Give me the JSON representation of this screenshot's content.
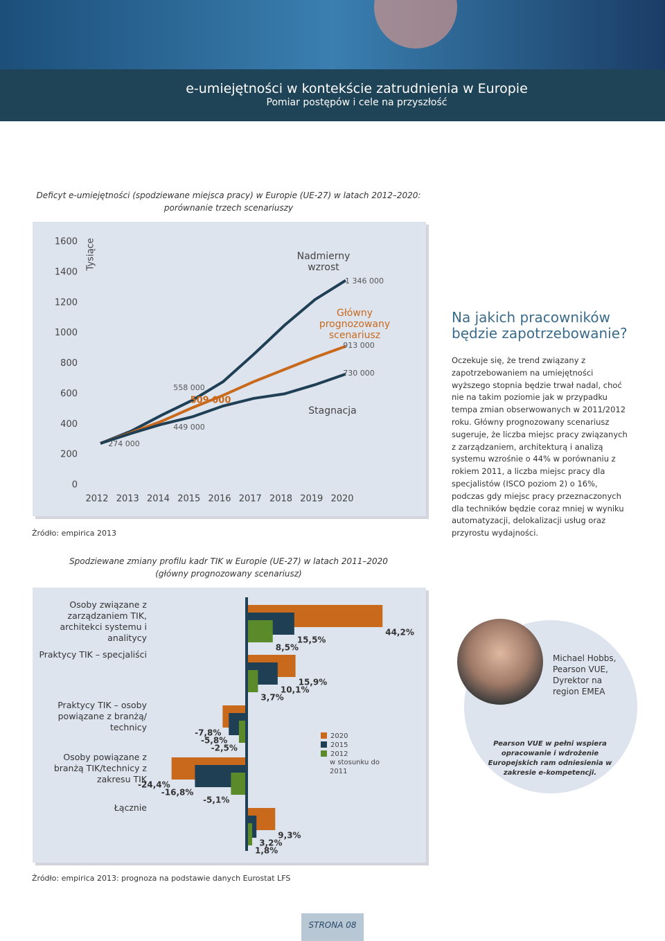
{
  "header": {
    "title": "e-umiejętności w kontekście zatrudnienia w Europie",
    "subtitle": "Pomiar postępów i cele na przyszłość"
  },
  "chart_data": [
    {
      "type": "line",
      "title": [
        "Deficyt e-umiejętności (spodziewane miejsca pracy) w Europie (UE-27) w latach 2012–2020:",
        "porównanie trzech scenariuszy"
      ],
      "ylabel": "Tysiące",
      "categories": [
        "2012",
        "2013",
        "2014",
        "2015",
        "2016",
        "2017",
        "2018",
        "2019",
        "2020"
      ],
      "ylim": [
        0,
        1600
      ],
      "yticks": [
        0,
        200,
        400,
        600,
        800,
        1000,
        1200,
        1400,
        1600
      ],
      "series": [
        {
          "name": "Nadmierny wzrost",
          "color": "#1f3f55",
          "values": [
            274,
            355,
            460,
            558,
            680,
            860,
            1050,
            1220,
            1346
          ]
        },
        {
          "name": "Główny prognozowany scenariusz",
          "color": "#c8691c",
          "values": [
            274,
            345,
            420,
            509,
            590,
            680,
            760,
            840,
            913
          ]
        },
        {
          "name": "Stagnacja",
          "color": "#1f3f55",
          "values": [
            274,
            340,
            400,
            449,
            520,
            570,
            600,
            660,
            730
          ]
        }
      ],
      "annotations": [
        "274 000",
        "558 000",
        "509 000",
        "449 000",
        "1 346 000",
        "913 000",
        "730 000"
      ],
      "source": "Źródło: empirica 2013"
    },
    {
      "type": "hbar",
      "title": [
        "Spodziewane zmiany profilu kadr TIK w Europie (UE-27) w latach 2011–2020",
        "(główny prognozowany scenariusz)"
      ],
      "categories": [
        "Osoby związane z zarządzaniem TIK, architekci systemu i analitycy",
        "Praktycy TIK – specjaliści",
        "Praktycy TIK – osoby powiązane z branżą/ technicy",
        "Osoby powiązane z branżą TIK/technicy z zakresu TIK",
        "Łącznie"
      ],
      "xlim": [
        -25,
        50
      ],
      "series": [
        {
          "name": "2020",
          "color": "#c8691c",
          "values": [
            44.2,
            15.9,
            -7.8,
            -24.4,
            9.3
          ],
          "value_labels": [
            "44,2%",
            "15,9%",
            "-7,8%",
            "-24,4%",
            "9,3%"
          ]
        },
        {
          "name": "2015",
          "color": "#1f3f55",
          "values": [
            15.5,
            10.1,
            -5.8,
            -16.8,
            3.2
          ],
          "value_labels": [
            "15,5%",
            "10,1%",
            "-5,8%",
            "-16,8%",
            "3,2%"
          ]
        },
        {
          "name": "2012",
          "color": "#5b8a2a",
          "values": [
            8.5,
            3.7,
            -2.5,
            -5.1,
            1.8
          ],
          "value_labels": [
            "8,5%",
            "3,7%",
            "-2,5%",
            "-5,1%",
            "1,8%"
          ]
        }
      ],
      "legend_note": "w stosunku do 2011",
      "source": "Źródło: empirica 2013: prognoza na podstawie danych Eurostat LFS"
    }
  ],
  "sidebar": {
    "heading": "Na jakich pracowników będzie zapotrzebowanie?",
    "text": "Oczekuje się, że trend związany z zapotrzebowaniem na umiejętności wyższego stopnia będzie trwał nadal, choć nie na takim poziomie jak w przypadku tempa zmian obserwowanych w 2011/2012 roku. Główny prognozowany scenariusz sugeruje, że liczba miejsc pracy związanych z zarządzaniem, architekturą i analizą systemu wzrośnie o 44% w porównaniu z rokiem 2011, a liczba miejsc pracy dla specjalistów (ISCO poziom 2) o 16%, podczas gdy miejsc pracy przeznaczonych dla techników będzie coraz mniej w wyniku automatyzacji, delokalizacji usług oraz przyrostu wydajności."
  },
  "profile": {
    "name": "Michael Hobbs, Pearson VUE, Dyrektor na region EMEA",
    "caption": "Pearson VUE w pełni wspiera opracowanie i wdrożenie Europejskich ram odniesienia w zakresie e-kompetencji."
  },
  "footer": {
    "page": "STRONA 08"
  }
}
